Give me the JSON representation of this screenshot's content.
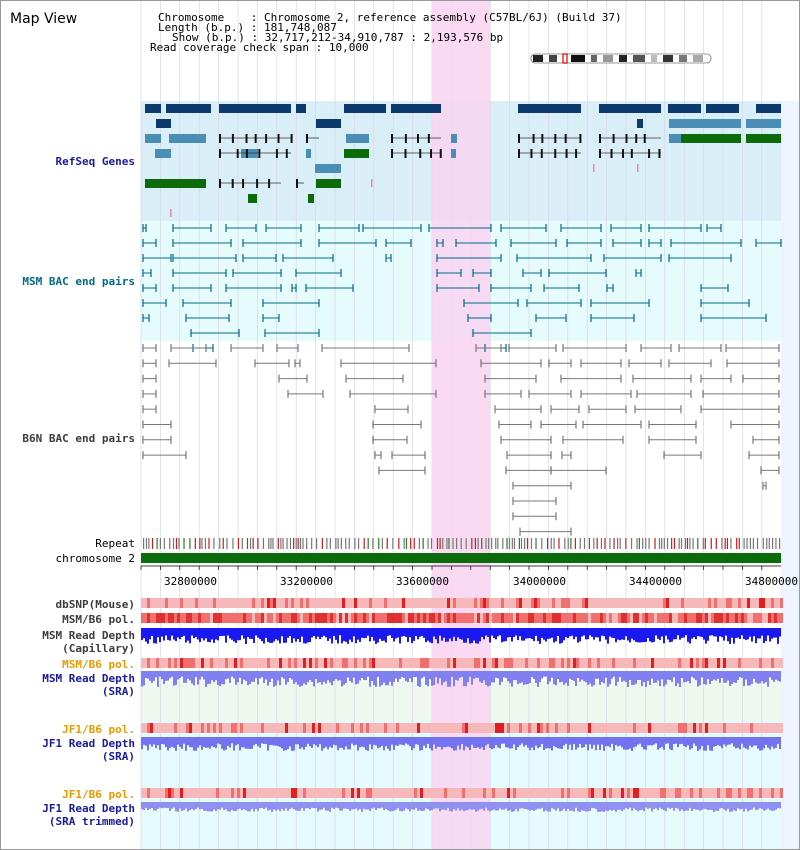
{
  "title": "Map View",
  "info": {
    "chromosome_key": "Chromosome",
    "chromosome_value": "Chromosome 2, reference assembly (C57BL/6J) (Build 37)",
    "length_key": "Length (b.p.)",
    "length_value": "181,748,087",
    "show_key": "Show (b.p.)",
    "show_value": "32,717,212-34,910,787 : 2,193,576 bp",
    "coverage_key": "Read coverage check span",
    "coverage_value": "10,000"
  },
  "tracks": {
    "refseq": "RefSeq Genes",
    "msm_bac": "MSM BAC end pairs",
    "b6n_bac": "B6N BAC end pairs",
    "repeat": "Repeat",
    "chrom": "chromosome 2",
    "dbsnp": "dbSNP(Mouse)",
    "msm_b6_pol_1": "MSM/B6 pol.",
    "msm_depth_cap_1": "MSM Read Depth",
    "msm_depth_cap_2": "(Capillary)",
    "msm_b6_pol_2": "MSM/B6 pol.",
    "msm_depth_sra_1": "MSM Read Depth",
    "msm_depth_sra_2": "(SRA)",
    "jf1_b6_pol_1": "JF1/B6 pol.",
    "jf1_depth_1": "JF1 Read Depth",
    "jf1_depth_2": "(SRA)",
    "jf1_b6_pol_2": "JF1/B6 pol.",
    "jf1_trim_1": "JF1 Read Depth",
    "jf1_trim_2": "(SRA trimmed)"
  },
  "axis_ticks": [
    "32800000",
    "33200000",
    "33600000",
    "34000000",
    "34400000",
    "34800000"
  ],
  "colors": {
    "refseq_bg": "#daeef8",
    "bac_bg": "#e6fbfb",
    "highlight": "#f9d4f1",
    "gene_dark": "#0d3a6e",
    "gene_mid": "#4a8db5",
    "gene_green": "#0b6b0b",
    "chrom_bar": "#0a6b0a",
    "depth_dark": "#1a1af0",
    "depth_light": "#8080f0"
  }
}
